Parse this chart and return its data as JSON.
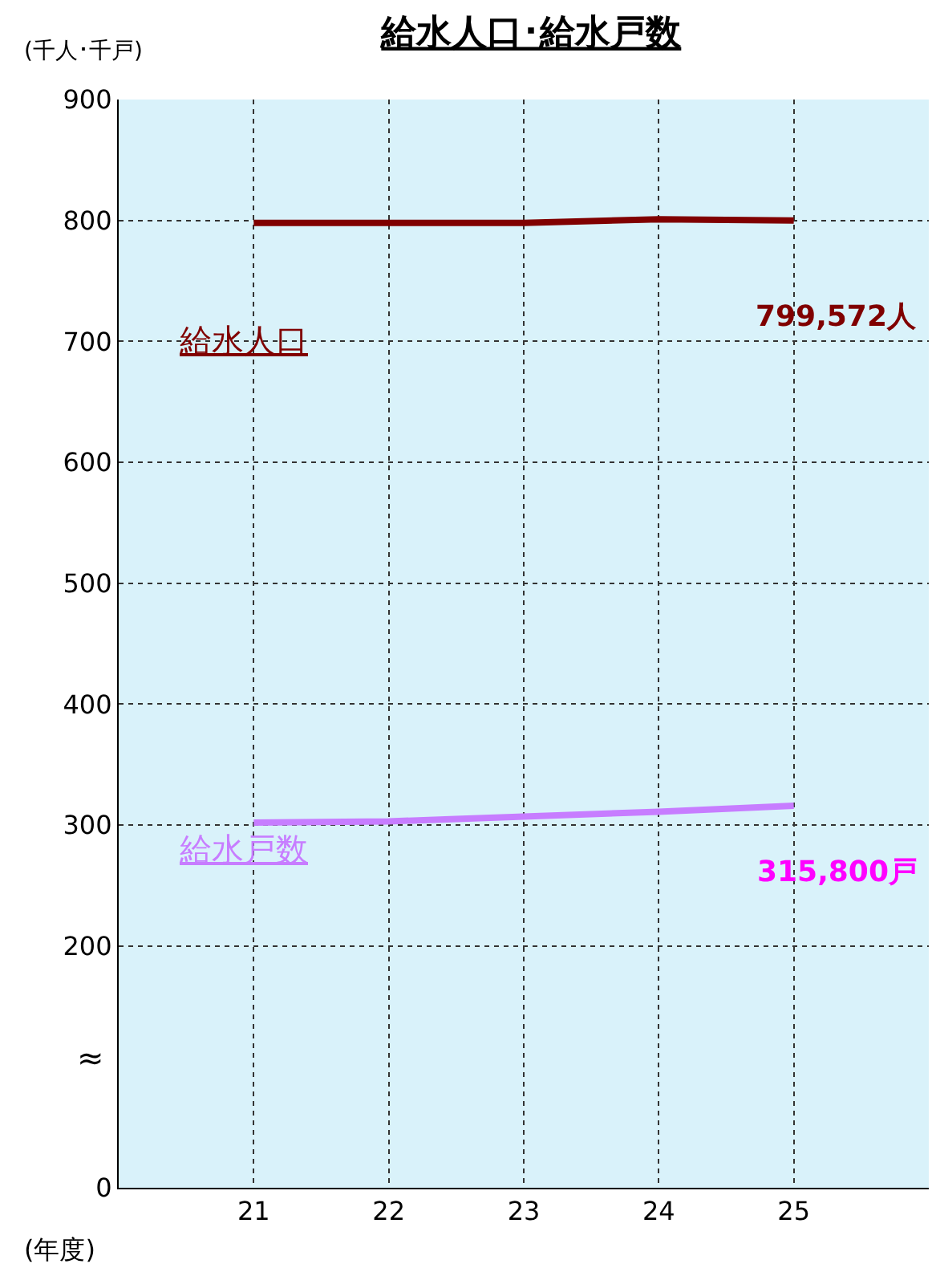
{
  "chart_data": {
    "type": "line",
    "title": "給水人口･給水戸数",
    "xlabel": "(年度)",
    "ylabel": "(千人･千戸)",
    "x": [
      21,
      22,
      23,
      24,
      25
    ],
    "xlim": [
      20,
      26
    ],
    "xticks": [
      21,
      22,
      23,
      24,
      25
    ],
    "ylim": [
      0,
      900
    ],
    "yticks": [
      0,
      200,
      300,
      400,
      500,
      600,
      700,
      800,
      900
    ],
    "series": [
      {
        "name": "給水人口",
        "color": "#800000",
        "values": [
          798,
          798,
          798,
          801,
          800
        ]
      },
      {
        "name": "給水戸数",
        "color": "#c77dff",
        "values": [
          302,
          303,
          307,
          311,
          316
        ]
      }
    ],
    "annotations": [
      "≈",
      "799,572人",
      "315,800戸"
    ],
    "grid": true,
    "marker": "none",
    "line_style": "solid",
    "legend": false
  }
}
